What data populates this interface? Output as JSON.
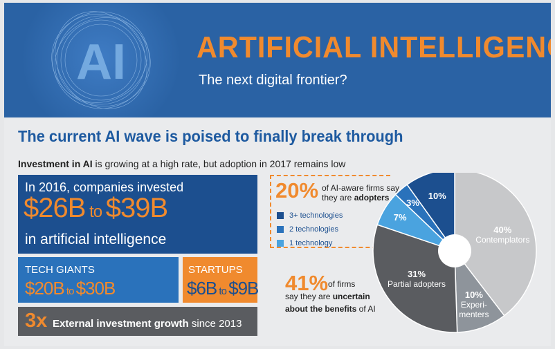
{
  "banner": {
    "title": "ARTIFICIAL INTELLIGENCE",
    "subtitle": "The next digital frontier?",
    "logo_text": "AI"
  },
  "headline": "The current AI wave is poised to finally break through",
  "intro": {
    "bold": "Investment in AI",
    "rest": " is growing at a high rate, but adoption in 2017 remains low"
  },
  "investment": {
    "line1": "In 2016, companies invested",
    "low": "$26B",
    "to": " to ",
    "high": "$39B",
    "line3": "in artificial intelligence"
  },
  "tech_giants": {
    "label": "TECH GIANTS",
    "low": "$20B",
    "to": " to ",
    "high": "$30B"
  },
  "startups": {
    "label": "STARTUPS",
    "low": "$6B",
    "to": " to ",
    "high": "$9B"
  },
  "growth": {
    "multiple": "3x",
    "bold": "External investment growth",
    "rest": " since 2013"
  },
  "adopters": {
    "pct": "20%",
    "line1": "of AI-aware firms say",
    "line2_prefix": "they are ",
    "line2_bold": "adopters"
  },
  "uncertain": {
    "pct": "41%",
    "line1": "of firms",
    "line2_prefix": "say they are ",
    "line2_bold": "uncertain",
    "line3_bold": "about the benefits",
    "line3_rest": " of AI"
  },
  "colors": {
    "navy": "#1c4f8f",
    "mid_blue": "#2a72bb",
    "light_blue": "#4aa3df",
    "orange": "#f08a2e",
    "dark_gray": "#5a5c60",
    "light_gray": "#c7c8ca",
    "medium_gray": "#8e949b"
  },
  "chart_data": {
    "type": "pie",
    "slices": [
      {
        "label": "Contemplators",
        "value": 40,
        "display": "40%",
        "color": "#c7c8ca"
      },
      {
        "label": "Experi-menters",
        "value": 10,
        "display": "10%",
        "color": "#8e949b"
      },
      {
        "label": "Partial adopters",
        "value": 31,
        "display": "31%",
        "color": "#5a5c60"
      },
      {
        "label": "1 technology",
        "value": 7,
        "display": "7%",
        "color": "#4aa3df"
      },
      {
        "label": "2 technologies",
        "value": 3,
        "display": "3%",
        "color": "#2a72bb"
      },
      {
        "label": "3+ technologies",
        "value": 10,
        "display": "10%",
        "color": "#1c4f8f"
      }
    ],
    "legend": [
      "3+ technologies",
      "2 technologies",
      "1 technology"
    ]
  }
}
